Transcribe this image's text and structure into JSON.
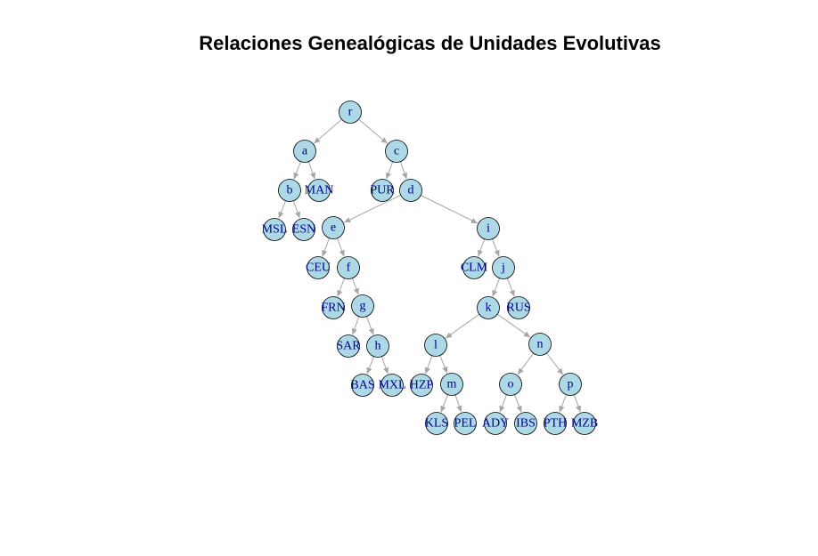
{
  "title": "Relaciones Genealógicas de Unidades Evolutivas",
  "colors": {
    "node_fill": "#add8e6",
    "node_border": "#000000",
    "label": "#00008b",
    "edge": "#a6a6a6"
  },
  "tree": {
    "root": "r",
    "nodes": [
      "r",
      "a",
      "c",
      "b",
      "MAN",
      "PUR",
      "d",
      "MSL",
      "ESN",
      "e",
      "i",
      "CEU",
      "f",
      "CLM",
      "j",
      "FRN",
      "g",
      "k",
      "RUS",
      "SAR",
      "h",
      "l",
      "n",
      "BAS",
      "MXL",
      "HZP",
      "m",
      "o",
      "p",
      "KLS",
      "PEL",
      "ADY",
      "IBS",
      "PTH",
      "MZB"
    ],
    "edges": [
      [
        "r",
        "a"
      ],
      [
        "r",
        "c"
      ],
      [
        "a",
        "b"
      ],
      [
        "a",
        "MAN"
      ],
      [
        "b",
        "MSL"
      ],
      [
        "b",
        "ESN"
      ],
      [
        "c",
        "PUR"
      ],
      [
        "c",
        "d"
      ],
      [
        "d",
        "e"
      ],
      [
        "d",
        "i"
      ],
      [
        "e",
        "CEU"
      ],
      [
        "e",
        "f"
      ],
      [
        "f",
        "FRN"
      ],
      [
        "f",
        "g"
      ],
      [
        "g",
        "SAR"
      ],
      [
        "g",
        "h"
      ],
      [
        "h",
        "BAS"
      ],
      [
        "h",
        "MXL"
      ],
      [
        "i",
        "CLM"
      ],
      [
        "i",
        "j"
      ],
      [
        "j",
        "k"
      ],
      [
        "j",
        "RUS"
      ],
      [
        "k",
        "l"
      ],
      [
        "k",
        "n"
      ],
      [
        "l",
        "HZP"
      ],
      [
        "l",
        "m"
      ],
      [
        "m",
        "KLS"
      ],
      [
        "m",
        "PEL"
      ],
      [
        "n",
        "o"
      ],
      [
        "n",
        "p"
      ],
      [
        "o",
        "ADY"
      ],
      [
        "o",
        "IBS"
      ],
      [
        "p",
        "PTH"
      ],
      [
        "p",
        "MZB"
      ]
    ]
  }
}
